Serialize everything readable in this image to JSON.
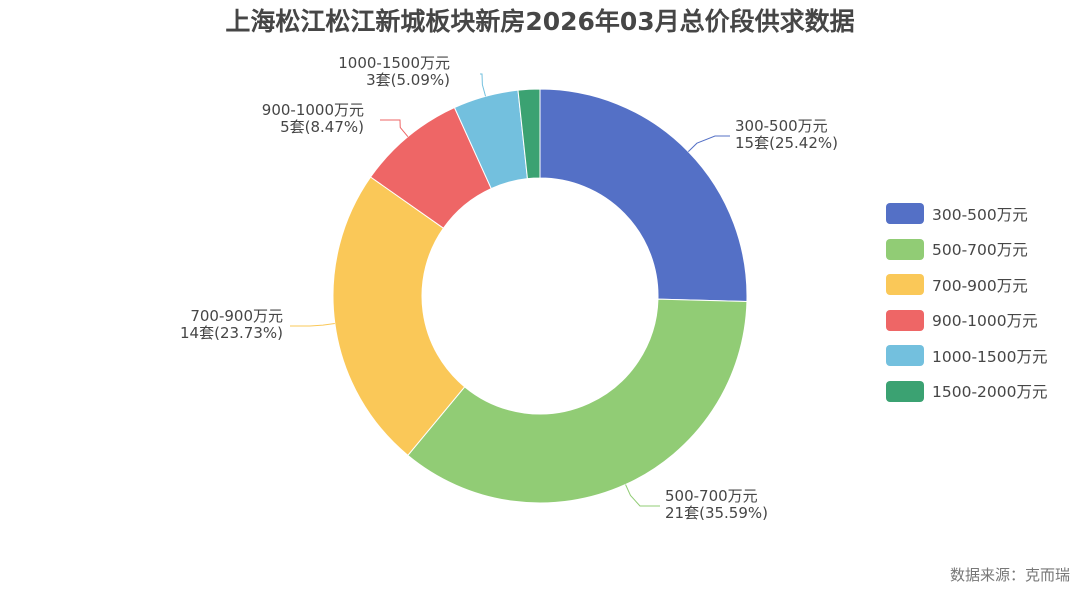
{
  "title": "上海松江松江新城板块新房2026年03月总价段供求数据",
  "source": "数据来源：克而瑞",
  "chart_data": {
    "type": "pie",
    "variant": "donut",
    "title": "上海松江松江新城板块新房2026年03月总价段供求数据",
    "categories": [
      "300-500万元",
      "500-700万元",
      "700-900万元",
      "900-1000万元",
      "1000-1500万元",
      "1500-2000万元"
    ],
    "values": [
      15,
      21,
      14,
      5,
      3,
      1
    ],
    "percentages": [
      25.42,
      35.59,
      23.73,
      8.47,
      5.09,
      1.69
    ],
    "unit": "套",
    "colors": [
      "#5470c6",
      "#91cc75",
      "#fac858",
      "#ee6666",
      "#73c0de",
      "#3ba272"
    ],
    "legend_position": "right",
    "center": [
      540,
      296
    ],
    "outer_radius": 207,
    "inner_radius": 118
  },
  "labels": [
    {
      "name": "300-500万元",
      "detail": "15套(25.42%)"
    },
    {
      "name": "500-700万元",
      "detail": "21套(35.59%)"
    },
    {
      "name": "700-900万元",
      "detail": "14套(23.73%)"
    },
    {
      "name": "900-1000万元",
      "detail": "5套(8.47%)"
    },
    {
      "name": "1000-1500万元",
      "detail": "3套(5.09%)"
    }
  ],
  "legend": [
    {
      "label": "300-500万元",
      "color": "#5470c6"
    },
    {
      "label": "500-700万元",
      "color": "#91cc75"
    },
    {
      "label": "700-900万元",
      "color": "#fac858"
    },
    {
      "label": "900-1000万元",
      "color": "#ee6666"
    },
    {
      "label": "1000-1500万元",
      "color": "#73c0de"
    },
    {
      "label": "1500-2000万元",
      "color": "#3ba272"
    }
  ]
}
